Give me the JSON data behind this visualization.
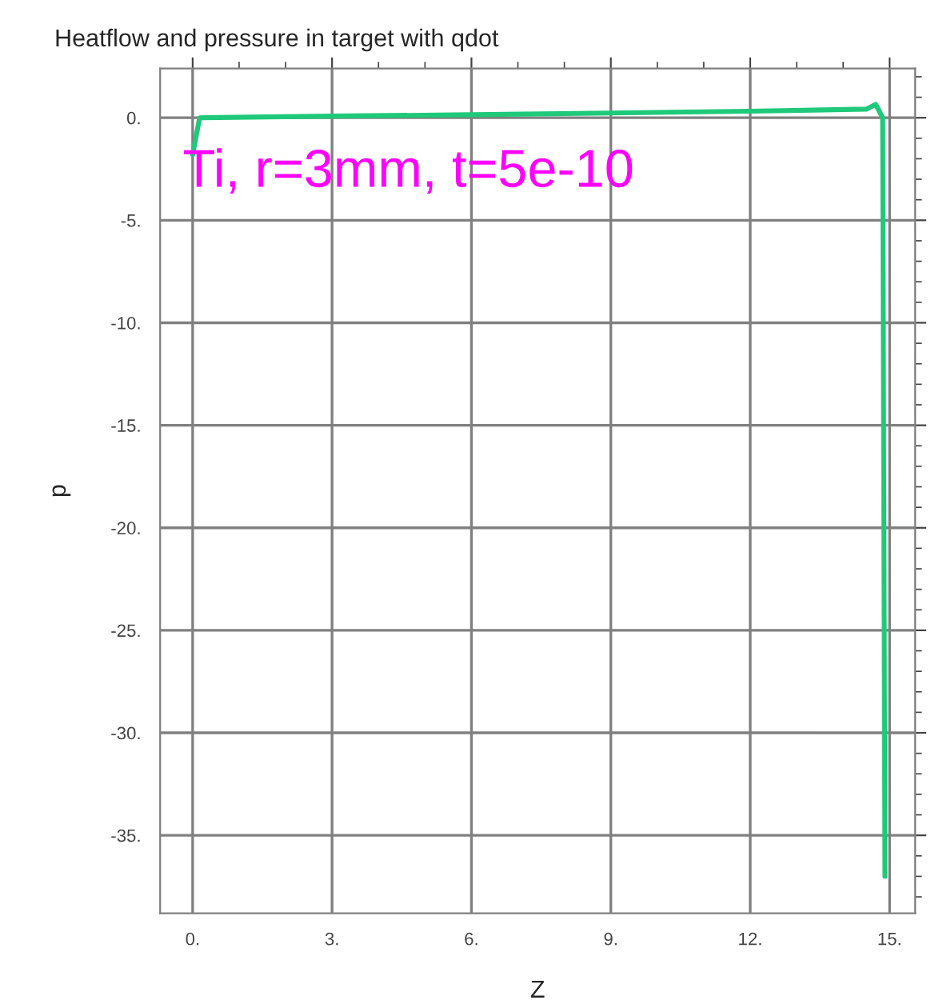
{
  "chart_data": {
    "type": "line",
    "title": "Heatflow and pressure in target with qdot",
    "xlabel": "Z",
    "ylabel": "p",
    "annotations": [
      "Ti, r=3mm, t=5e-10"
    ],
    "series": [
      {
        "color": "#1fc97a",
        "x": [
          0,
          0.15,
          3,
          6,
          9,
          12,
          14.5,
          14.7,
          14.85,
          14.9
        ],
        "values": [
          -1.8,
          0,
          0.08,
          0.15,
          0.23,
          0.32,
          0.42,
          0.65,
          0,
          -37
        ]
      }
    ],
    "xlim": [
      -0.7,
      15.55
    ],
    "ylim": [
      -38.8,
      2.4
    ],
    "xticks": [
      {
        "value": 0,
        "label": "0."
      },
      {
        "value": 3,
        "label": "3."
      },
      {
        "value": 6,
        "label": "6."
      },
      {
        "value": 9,
        "label": "9."
      },
      {
        "value": 12,
        "label": "12."
      },
      {
        "value": 15,
        "label": "15."
      }
    ],
    "yticks": [
      {
        "value": 0,
        "label": "0."
      },
      {
        "value": -5,
        "label": "-5."
      },
      {
        "value": -10,
        "label": "-10."
      },
      {
        "value": -15,
        "label": "-15."
      },
      {
        "value": -20,
        "label": "-20."
      },
      {
        "value": -25,
        "label": "-25."
      },
      {
        "value": -30,
        "label": "-30."
      },
      {
        "value": -35,
        "label": "-35."
      }
    ],
    "grid": true,
    "legend": false,
    "marker": "none",
    "line_style": "solid"
  }
}
